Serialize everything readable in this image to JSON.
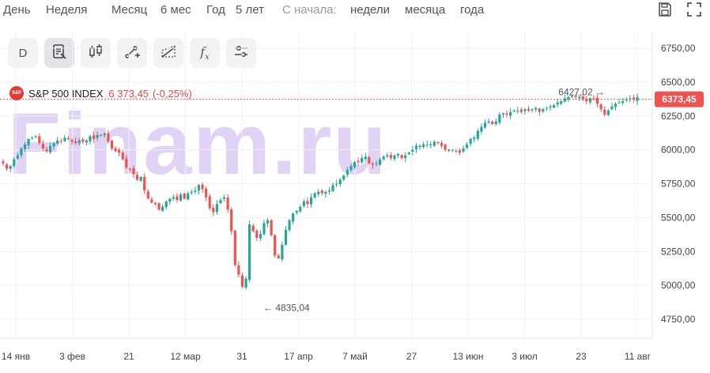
{
  "periods": {
    "day": "День",
    "week": "Неделя",
    "month": "Месяц",
    "six_months": "6 мес",
    "year": "Год",
    "five_years": "5 лет",
    "since_label": "С начала:",
    "since_week": "недели",
    "since_month": "месяца",
    "since_year": "года"
  },
  "toolbar": {
    "d_label": "D",
    "fx_label": "f"
  },
  "legend": {
    "logo_text": "S&P",
    "name": "S&P 500 INDEX",
    "value": "6 373,45",
    "change": "(-0,25%)"
  },
  "watermark": "Finam.ru",
  "colors": {
    "up": "#26a69a",
    "down": "#ef5350",
    "price_line": "#ef5350",
    "grid": "#f2f2f2",
    "watermark": "#c9b3ef"
  },
  "icons": [
    "save-icon",
    "fullscreen-icon",
    "indicators-icon",
    "candles-icon",
    "line-draw-icon",
    "channel-icon",
    "fx-icon",
    "settings-icon"
  ],
  "chart_data": {
    "type": "candlestick",
    "title": "S&P 500 INDEX",
    "ylim": [
      4650,
      6850
    ],
    "y_ticks": [
      6750,
      6500,
      6250,
      6000,
      5750,
      5500,
      5250,
      5000,
      4750
    ],
    "y_tick_labels": [
      "6750,00",
      "6500,00",
      "6250,00",
      "6000,00",
      "5750,00",
      "5500,00",
      "5250,00",
      "5000,00",
      "4750,00"
    ],
    "x_tick_labels": [
      "14 янв",
      "3 фев",
      "21",
      "12 мар",
      "31",
      "17 апр",
      "7 май",
      "27",
      "13 июн",
      "3 июл",
      "23",
      "11 авг"
    ],
    "last_price": 6373.45,
    "last_price_label": "6373,45",
    "annotations": [
      {
        "label": "← 4835,04",
        "value": 4835.04
      },
      {
        "label": "6427,02 →",
        "value": 6427.02
      }
    ],
    "close": [
      5900,
      5860,
      5880,
      5930,
      5960,
      6010,
      6040,
      6080,
      6090,
      6100,
      6050,
      6010,
      5990,
      6030,
      6050,
      6070,
      6060,
      6090,
      6080,
      6060,
      6050,
      6070,
      6060,
      6070,
      6100,
      6080,
      6110,
      6110,
      6120,
      6060,
      6010,
      5990,
      5980,
      5930,
      5870,
      5860,
      5820,
      5780,
      5800,
      5700,
      5640,
      5610,
      5600,
      5560,
      5580,
      5620,
      5640,
      5650,
      5630,
      5670,
      5640,
      5680,
      5690,
      5700,
      5740,
      5710,
      5650,
      5570,
      5540,
      5600,
      5630,
      5650,
      5560,
      5400,
      5150,
      5080,
      4990,
      5050,
      5450,
      5400,
      5350,
      5380,
      5460,
      5480,
      5370,
      5220,
      5200,
      5300,
      5410,
      5480,
      5530,
      5550,
      5580,
      5620,
      5600,
      5650,
      5680,
      5690,
      5680,
      5690,
      5700,
      5740,
      5750,
      5780,
      5810,
      5850,
      5880,
      5910,
      5910,
      5940,
      5950,
      5900,
      5890,
      5900,
      5930,
      5950,
      5960,
      5940,
      5960,
      5970,
      5940,
      5960,
      5980,
      6000,
      6030,
      6030,
      6040,
      6040,
      6040,
      6060,
      6050,
      6030,
      6000,
      6000,
      6000,
      5990,
      5980,
      6010,
      6040,
      6080,
      6090,
      6140,
      6170,
      6200,
      6210,
      6190,
      6210,
      6260,
      6270,
      6260,
      6280,
      6290,
      6290,
      6280,
      6300,
      6290,
      6300,
      6310,
      6280,
      6300,
      6310,
      6320,
      6330,
      6350,
      6360,
      6380,
      6390,
      6400,
      6390,
      6390,
      6370,
      6360,
      6380,
      6380,
      6340,
      6300,
      6260,
      6290,
      6320,
      6340,
      6350,
      6360,
      6370,
      6380,
      6370,
      6390
    ]
  }
}
